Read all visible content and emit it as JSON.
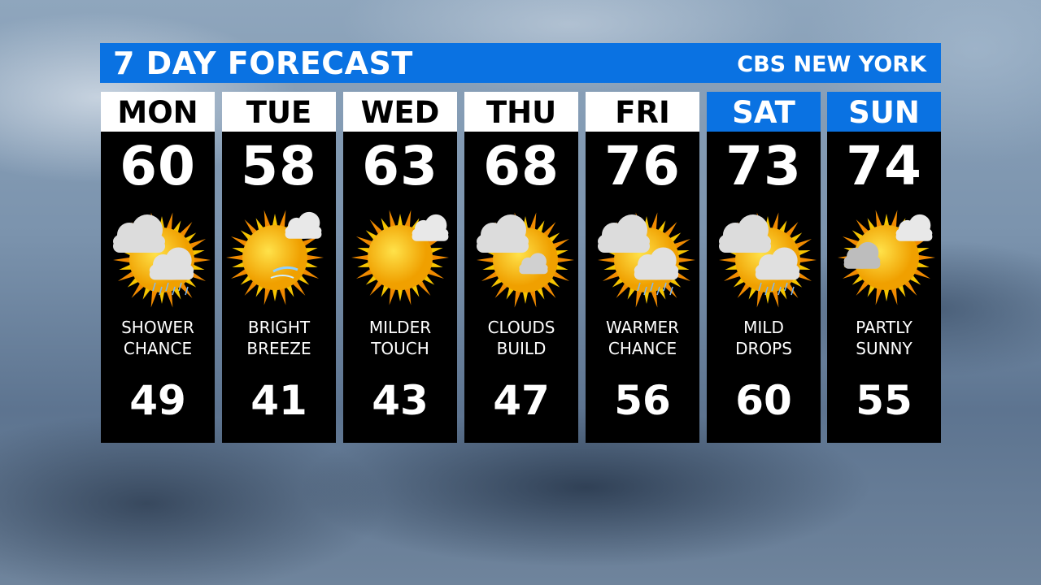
{
  "header": {
    "title": "7 DAY FORECAST",
    "station": "CBS NEW YORK"
  },
  "colors": {
    "accent_blue": "#0a72e2",
    "panel_black": "#000000",
    "day_white": "#ffffff"
  },
  "days": [
    {
      "day": "MON",
      "high": "60",
      "low": "49",
      "cond1": "SHOWER",
      "cond2": "CHANCE",
      "icon": "sun-clouds-showers-icon",
      "weekend": false
    },
    {
      "day": "TUE",
      "high": "58",
      "low": "41",
      "cond1": "BRIGHT",
      "cond2": "BREEZE",
      "icon": "sun-wind-icon",
      "weekend": false
    },
    {
      "day": "WED",
      "high": "63",
      "low": "43",
      "cond1": "MILDER",
      "cond2": "TOUCH",
      "icon": "sunny-icon",
      "weekend": false
    },
    {
      "day": "THU",
      "high": "68",
      "low": "47",
      "cond1": "CLOUDS",
      "cond2": "BUILD",
      "icon": "mostly-cloudy-icon",
      "weekend": false
    },
    {
      "day": "FRI",
      "high": "76",
      "low": "56",
      "cond1": "WARMER",
      "cond2": "CHANCE",
      "icon": "sun-clouds-showers-icon",
      "weekend": false
    },
    {
      "day": "SAT",
      "high": "73",
      "low": "60",
      "cond1": "MILD",
      "cond2": "DROPS",
      "icon": "sun-clouds-showers-icon",
      "weekend": true
    },
    {
      "day": "SUN",
      "high": "74",
      "low": "55",
      "cond1": "PARTLY",
      "cond2": "SUNNY",
      "icon": "partly-sunny-icon",
      "weekend": true
    }
  ]
}
